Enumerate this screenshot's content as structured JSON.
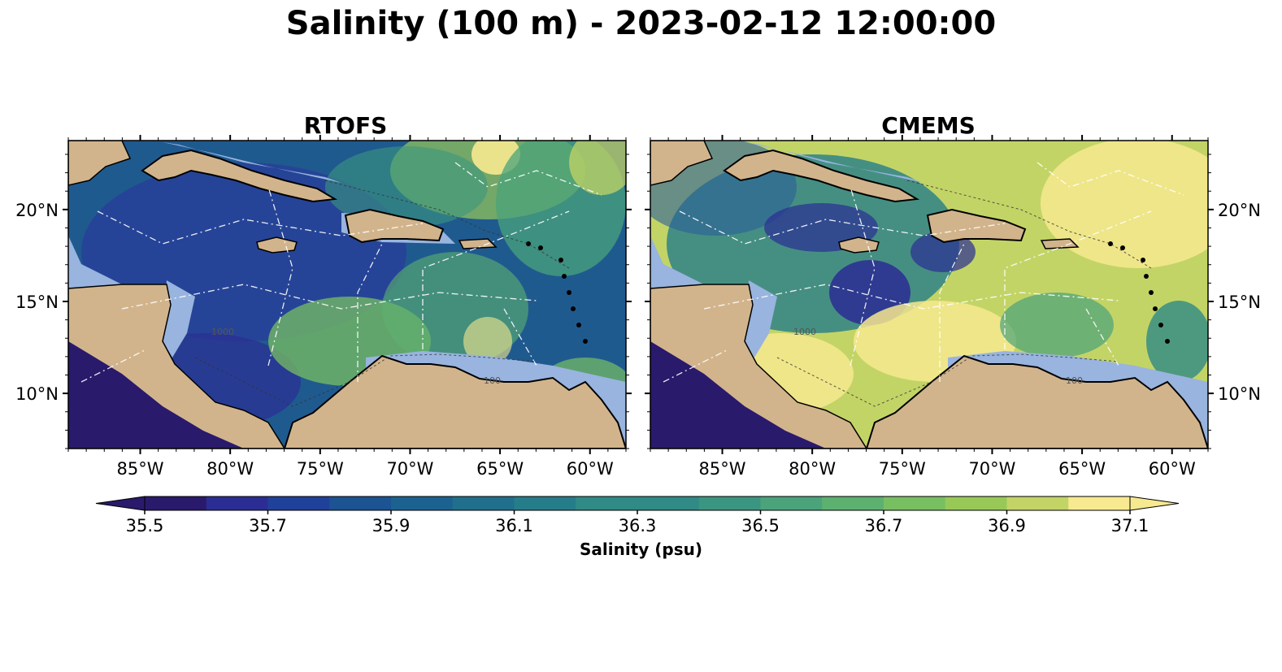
{
  "title": "Salinity (100 m) - 2023-02-12 12:00:00",
  "panels": [
    {
      "id": "rtofs",
      "title": "RTOFS"
    },
    {
      "id": "cmems",
      "title": "CMEMS"
    }
  ],
  "map": {
    "lon_range": [
      -89,
      -58
    ],
    "lat_range": [
      7,
      23.75
    ],
    "lon_ticks": [
      {
        "value": -85,
        "label": "85°W"
      },
      {
        "value": -80,
        "label": "80°W"
      },
      {
        "value": -75,
        "label": "75°W"
      },
      {
        "value": -70,
        "label": "70°W"
      },
      {
        "value": -65,
        "label": "65°W"
      },
      {
        "value": -60,
        "label": "60°W"
      }
    ],
    "lat_ticks": [
      {
        "value": 20,
        "label": "20°N"
      },
      {
        "value": 15,
        "label": "15°N"
      },
      {
        "value": 10,
        "label": "10°N"
      }
    ],
    "land_color": "#d2b48c",
    "shelf_color": "#98b4df",
    "contour_labels": [
      "1000",
      "100"
    ]
  },
  "colorbar": {
    "label": "Salinity (psu)",
    "min": 35.5,
    "max": 37.1,
    "tick_labels": [
      "35.5",
      "35.7",
      "35.9",
      "36.1",
      "36.3",
      "36.5",
      "36.7",
      "36.9",
      "37.1"
    ],
    "extend": "both",
    "colors": [
      "#2a1a6b",
      "#2b2d94",
      "#20419a",
      "#1b5393",
      "#1b6290",
      "#206f8d",
      "#267d8a",
      "#308a86",
      "#3b9681",
      "#4aa37b",
      "#5db170",
      "#78bf62",
      "#98c957",
      "#c3d466",
      "#f7e98f"
    ]
  }
}
